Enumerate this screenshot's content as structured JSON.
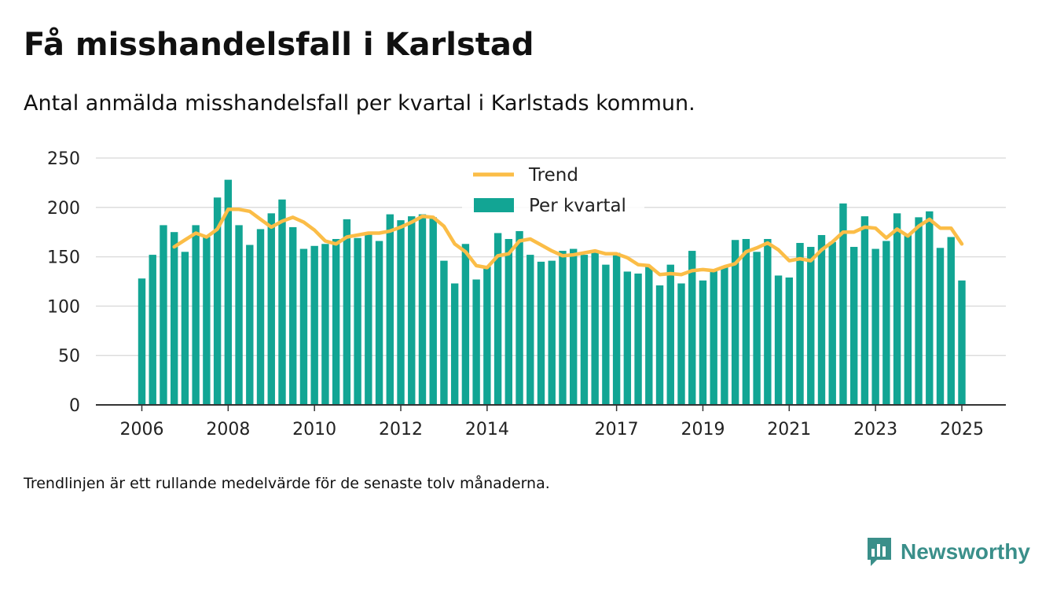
{
  "title": "Få misshandelsfall i Karlstad",
  "subtitle": "Antal anmälda misshandelsfall per kvartal i Karlstads kommun.",
  "footnote": "Trendlinjen är ett rullande medelvärde för de senaste tolv månaderna.",
  "brand": {
    "name": "Newsworthy",
    "icon": "newsworthy-logo-icon",
    "color": "#3a8f8a"
  },
  "colors": {
    "bar": "#12a594",
    "trend": "#fbbd47",
    "grid": "#dddddd",
    "axis": "#333333"
  },
  "chart_data": {
    "type": "bar",
    "title": "",
    "xlabel": "",
    "ylabel": "",
    "ylim": [
      0,
      250
    ],
    "yticks": [
      0,
      50,
      100,
      150,
      200,
      250
    ],
    "xtick_labels": [
      "2006",
      "2008",
      "2010",
      "2012",
      "2014",
      "2017",
      "2019",
      "2021",
      "2023",
      "2025"
    ],
    "xtick_positions": [
      "2006-Q1",
      "2008-Q1",
      "2010-Q1",
      "2012-Q1",
      "2014-Q1",
      "2017-Q1",
      "2019-Q1",
      "2021-Q1",
      "2023-Q1",
      "2025-Q1"
    ],
    "grid": true,
    "legend_position": "top-center",
    "categories": [
      "2006-Q1",
      "2006-Q2",
      "2006-Q3",
      "2006-Q4",
      "2007-Q1",
      "2007-Q2",
      "2007-Q3",
      "2007-Q4",
      "2008-Q1",
      "2008-Q2",
      "2008-Q3",
      "2008-Q4",
      "2009-Q1",
      "2009-Q2",
      "2009-Q3",
      "2009-Q4",
      "2010-Q1",
      "2010-Q2",
      "2010-Q3",
      "2010-Q4",
      "2011-Q1",
      "2011-Q2",
      "2011-Q3",
      "2011-Q4",
      "2012-Q1",
      "2012-Q2",
      "2012-Q3",
      "2012-Q4",
      "2013-Q1",
      "2013-Q2",
      "2013-Q3",
      "2013-Q4",
      "2014-Q1",
      "2014-Q2",
      "2014-Q3",
      "2014-Q4",
      "2015-Q1",
      "2015-Q2",
      "2015-Q3",
      "2015-Q4",
      "2016-Q1",
      "2016-Q2",
      "2016-Q3",
      "2016-Q4",
      "2017-Q1",
      "2017-Q2",
      "2017-Q3",
      "2017-Q4",
      "2018-Q1",
      "2018-Q2",
      "2018-Q3",
      "2018-Q4",
      "2019-Q1",
      "2019-Q2",
      "2019-Q3",
      "2019-Q4",
      "2020-Q1",
      "2020-Q2",
      "2020-Q3",
      "2020-Q4",
      "2021-Q1",
      "2021-Q2",
      "2021-Q3",
      "2021-Q4",
      "2022-Q1",
      "2022-Q2",
      "2022-Q3",
      "2022-Q4",
      "2023-Q1",
      "2023-Q2",
      "2023-Q3",
      "2023-Q4",
      "2024-Q1",
      "2024-Q2",
      "2024-Q3",
      "2024-Q4",
      "2025-Q1"
    ],
    "series": [
      {
        "name": "Per kvartal",
        "type": "bar",
        "values": [
          128,
          152,
          182,
          175,
          155,
          182,
          170,
          210,
          228,
          182,
          162,
          178,
          194,
          208,
          180,
          158,
          161,
          163,
          168,
          188,
          169,
          173,
          166,
          193,
          187,
          191,
          193,
          190,
          146,
          123,
          163,
          127,
          140,
          174,
          168,
          176,
          152,
          145,
          146,
          156,
          158,
          152,
          154,
          142,
          154,
          135,
          133,
          140,
          121,
          142,
          123,
          156,
          126,
          136,
          140,
          167,
          168,
          155,
          168,
          131,
          129,
          164,
          160,
          172,
          165,
          204,
          160,
          191,
          158,
          166,
          194,
          172,
          190,
          196,
          159,
          170,
          126
        ]
      },
      {
        "name": "Trend",
        "type": "line",
        "values": [
          null,
          null,
          null,
          160,
          167,
          174,
          170,
          178,
          198,
          198,
          196,
          188,
          180,
          186,
          190,
          185,
          177,
          166,
          163,
          170,
          172,
          174,
          174,
          176,
          180,
          185,
          191,
          190,
          181,
          163,
          155,
          141,
          139,
          151,
          153,
          166,
          168,
          162,
          156,
          151,
          152,
          154,
          156,
          153,
          153,
          149,
          142,
          141,
          132,
          133,
          132,
          136,
          137,
          136,
          140,
          143,
          155,
          159,
          164,
          157,
          146,
          148,
          146,
          157,
          165,
          175,
          175,
          180,
          179,
          169,
          178,
          171,
          181,
          188,
          179,
          179,
          163
        ]
      }
    ]
  }
}
